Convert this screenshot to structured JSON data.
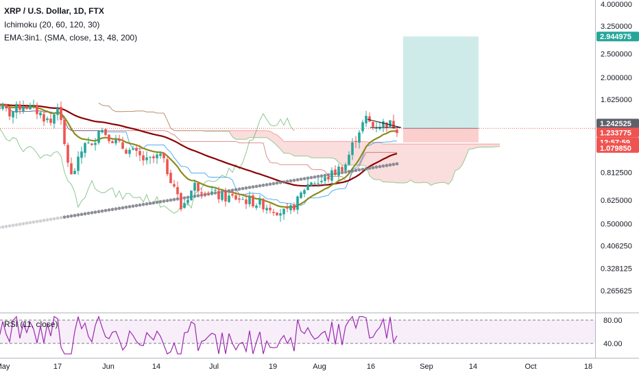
{
  "legend": {
    "title": "XRP / U.S. Dollar, 1D, FTX",
    "ichimoku": "Ichimoku (20, 60, 120, 30)",
    "ema": "EMA:3in1. (SMA, close, 13, 48, 200)",
    "rsi": "RSI (11, close)"
  },
  "chart_data": {
    "type": "candlestick",
    "y_scale": "log",
    "price_ticks": [
      "4.000000",
      "3.250000",
      "2.500000",
      "2.000000",
      "1.625000",
      "0.812500",
      "0.625000",
      "0.500000",
      "0.406250",
      "0.328125",
      "0.265625"
    ],
    "rsi_ticks": [
      "80.00",
      "40.00"
    ],
    "x_ticks": [
      "May",
      "17",
      "Jun",
      "14",
      "Jul",
      "19",
      "Aug",
      "16",
      "Sep",
      "14",
      "Oct",
      "18"
    ],
    "price_badges": [
      {
        "label": "2.944975",
        "color": "#26a69a"
      },
      {
        "label": "1.242525",
        "color": "#5d606b"
      },
      {
        "label": "1.233775",
        "color": "#ef5350"
      },
      {
        "label": "12:57:59",
        "color": "#ef5350"
      },
      {
        "label": "1.079850",
        "color": "#ef5350"
      }
    ],
    "position": {
      "entry": 1.2338,
      "target": 2.945,
      "stop": 1.0799
    },
    "colors": {
      "up": "#26a69a",
      "down": "#ef5350",
      "ema13": "#8b8b1a",
      "ema48": "#8b0000",
      "ema200": "#787b86",
      "rsi": "#9c27b0",
      "cloud_bull": "#c8e6c9",
      "cloud_bear": "#f8cfcf"
    },
    "rsi_band": [
      40,
      80
    ]
  }
}
